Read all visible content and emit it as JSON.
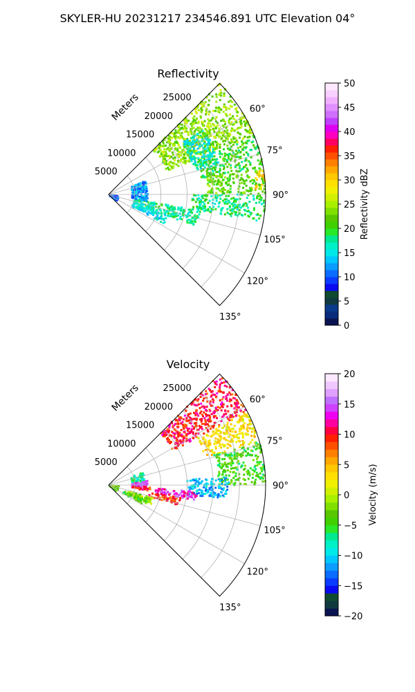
{
  "figure": {
    "title": "SKYLER-HU  20231217  234546.891 UTC Elevation 04°"
  },
  "chart_data": [
    {
      "type": "polar-sector",
      "title": "Reflectivity",
      "radial_label": "Meters",
      "theta_range_deg": [
        45,
        135
      ],
      "theta_ticks": [
        60,
        75,
        90,
        105,
        120,
        135
      ],
      "theta_tick_labels": [
        "60°",
        "75°",
        "90°",
        "105°",
        "120°",
        "135°"
      ],
      "r_range": [
        0,
        30000
      ],
      "r_ticks": [
        5000,
        10000,
        15000,
        20000,
        25000
      ],
      "r_tick_labels": [
        "5000",
        "10000",
        "15000",
        "20000",
        "25000"
      ],
      "grid": true,
      "colorbar": {
        "label": "Reflectivity dBZ",
        "range": [
          0,
          50
        ],
        "ticks": [
          0,
          5,
          10,
          15,
          20,
          25,
          30,
          35,
          40,
          45,
          50
        ],
        "tick_labels": [
          "0",
          "5",
          "10",
          "15",
          "20",
          "25",
          "30",
          "35",
          "40",
          "45",
          "50"
        ],
        "colors": [
          "#0a1450",
          "#0a2a7a",
          "#0a3a8a",
          "#103a40",
          "#104a30",
          "#0a0af0",
          "#0a3cff",
          "#0a6cff",
          "#0a9cff",
          "#00c8ff",
          "#00e8e8",
          "#00f0c8",
          "#00e890",
          "#28e828",
          "#40d000",
          "#58c800",
          "#80e000",
          "#a8f000",
          "#d0f000",
          "#f0f000",
          "#ffe000",
          "#ffc800",
          "#ffa800",
          "#ff8000",
          "#ff5000",
          "#ff2000",
          "#ff0060",
          "#ff00c0",
          "#e000f0",
          "#c040ff",
          "#d070ff",
          "#e090ff",
          "#f0b0ff",
          "#f8d0ff",
          "#fce8ff"
        ]
      },
      "echo_regions": [
        {
          "theta": [
            45,
            68
          ],
          "r": [
            12000,
            30000
          ],
          "value": 24
        },
        {
          "theta": [
            68,
            80
          ],
          "r": [
            18000,
            30000
          ],
          "value": 20
        },
        {
          "theta": [
            80,
            90
          ],
          "r": [
            19000,
            30000
          ],
          "value": 22
        },
        {
          "theta": [
            80,
            88
          ],
          "r": [
            28000,
            30000
          ],
          "value": 30
        },
        {
          "theta": [
            90,
            100
          ],
          "r": [
            16000,
            30000
          ],
          "value": 18
        },
        {
          "theta": [
            100,
            110
          ],
          "r": [
            5000,
            18000
          ],
          "value": 17
        },
        {
          "theta": [
            110,
            118
          ],
          "r": [
            5000,
            12000
          ],
          "value": 15
        },
        {
          "theta": [
            70,
            100
          ],
          "r": [
            4500,
            7500
          ],
          "value": 12
        },
        {
          "theta": [
            100,
            130
          ],
          "r": [
            300,
            2000
          ],
          "value": 10
        },
        {
          "theta": [
            55,
            75
          ],
          "r": [
            17000,
            22000
          ],
          "value": 16
        }
      ]
    },
    {
      "type": "polar-sector",
      "title": "Velocity",
      "radial_label": "Meters",
      "theta_range_deg": [
        45,
        135
      ],
      "theta_ticks": [
        60,
        75,
        90,
        105,
        120,
        135
      ],
      "theta_tick_labels": [
        "60°",
        "75°",
        "90°",
        "105°",
        "120°",
        "135°"
      ],
      "r_range": [
        0,
        30000
      ],
      "r_ticks": [
        5000,
        10000,
        15000,
        20000,
        25000
      ],
      "r_tick_labels": [
        "5000",
        "10000",
        "15000",
        "20000",
        "25000"
      ],
      "grid": true,
      "colorbar": {
        "label": "Velocity (m/s)",
        "range": [
          -20,
          20
        ],
        "ticks": [
          -20,
          -15,
          -10,
          -5,
          0,
          5,
          10,
          15,
          20
        ],
        "tick_labels": [
          "−20",
          "−15",
          "−10",
          "−5",
          "0",
          "5",
          "10",
          "15",
          "20"
        ],
        "colors": [
          "#0a1450",
          "#103a40",
          "#104a30",
          "#0a0af0",
          "#0a3cff",
          "#0a6cff",
          "#0a9cff",
          "#00c8ff",
          "#00e8e8",
          "#00f0c8",
          "#00e890",
          "#28e828",
          "#40d000",
          "#58c800",
          "#80e000",
          "#a8f000",
          "#d0f000",
          "#f0f000",
          "#ffe000",
          "#ffc800",
          "#ffa800",
          "#ff8000",
          "#ff5000",
          "#ff2000",
          "#ff0040",
          "#ff00a0",
          "#f000f0",
          "#d040ff",
          "#c070ff",
          "#e0a0ff",
          "#f0c8ff",
          "#fce8ff"
        ]
      },
      "echo_regions": [
        {
          "theta": [
            45,
            62
          ],
          "r": [
            14000,
            30000
          ],
          "value": 10
        },
        {
          "theta": [
            62,
            74
          ],
          "r": [
            19000,
            30000
          ],
          "value": 3
        },
        {
          "theta": [
            74,
            90
          ],
          "r": [
            21000,
            30000
          ],
          "value": -4
        },
        {
          "theta": [
            86,
            97
          ],
          "r": [
            15000,
            23000
          ],
          "value": -11
        },
        {
          "theta": [
            94,
            100
          ],
          "r": [
            9000,
            17000
          ],
          "value": 13
        },
        {
          "theta": [
            100,
            106
          ],
          "r": [
            8000,
            14000
          ],
          "value": 9
        },
        {
          "theta": [
            106,
            114
          ],
          "r": [
            4000,
            9000
          ],
          "value": -1
        },
        {
          "theta": [
            112,
            120
          ],
          "r": [
            3000,
            8000
          ],
          "value": -4
        },
        {
          "theta": [
            84,
            92
          ],
          "r": [
            4500,
            7500
          ],
          "value": 14
        },
        {
          "theta": [
            92,
            98
          ],
          "r": [
            4500,
            8000
          ],
          "value": 10
        },
        {
          "theta": [
            70,
            84
          ],
          "r": [
            4500,
            7000
          ],
          "value": -7
        },
        {
          "theta": [
            95,
            128
          ],
          "r": [
            300,
            2000
          ],
          "value": -3
        }
      ]
    }
  ]
}
